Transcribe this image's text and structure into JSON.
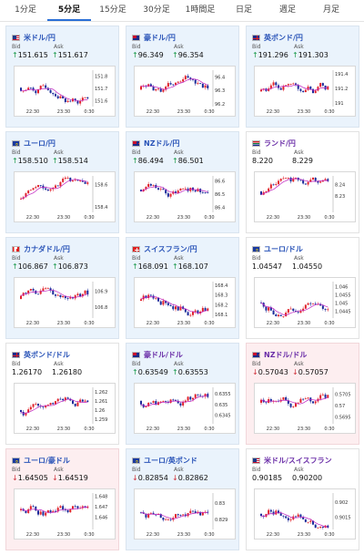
{
  "tabs": [
    {
      "label": "1分足",
      "active": false
    },
    {
      "label": "5分足",
      "active": true
    },
    {
      "label": "15分足",
      "active": false
    },
    {
      "label": "30分足",
      "active": false
    },
    {
      "label": "1時間足",
      "active": false
    },
    {
      "label": "日足",
      "active": false
    },
    {
      "label": "週足",
      "active": false
    },
    {
      "label": "月足",
      "active": false
    }
  ],
  "labels": {
    "bid": "Bid",
    "ask": "Ask"
  },
  "colors": {
    "up_candle": "#e0222b",
    "down_candle": "#1a2a9a",
    "ma_line": "#c020c0",
    "up_arrow": "#1a9a4a",
    "down_arrow": "#d0313b"
  },
  "pairs": [
    {
      "name": "米ドル/円",
      "flag": "flag-us",
      "bg": "blue",
      "dir": "up",
      "bid": "151.615",
      "ask": "151.617",
      "chart_data": {
        "type": "candlestick",
        "x_ticks": [
          "22:30",
          "23:30",
          "0:30"
        ],
        "y_ticks": [
          "151.8",
          "151.7",
          "151.6"
        ],
        "ylim": [
          151.55,
          151.85
        ]
      }
    },
    {
      "name": "豪ドル/円",
      "flag": "flag-au",
      "bg": "blue",
      "dir": "up",
      "bid": "96.349",
      "ask": "96.354",
      "chart_data": {
        "type": "candlestick",
        "x_ticks": [
          "22:30",
          "23:30",
          "0:30"
        ],
        "y_ticks": [
          "96.4",
          "96.3",
          "96.2"
        ],
        "ylim": [
          96.18,
          96.45
        ]
      }
    },
    {
      "name": "英ポンド/円",
      "flag": "flag-gb",
      "bg": "blue",
      "dir": "up",
      "bid": "191.296",
      "ask": "191.303",
      "chart_data": {
        "type": "candlestick",
        "x_ticks": [
          "22:30",
          "23:30",
          "0:30"
        ],
        "y_ticks": [
          "191.4",
          "191.2",
          "191"
        ],
        "ylim": [
          190.95,
          191.45
        ]
      }
    },
    {
      "name": "ユーロ/円",
      "flag": "flag-eu",
      "bg": "blue",
      "dir": "up",
      "bid": "158.510",
      "ask": "158.514",
      "chart_data": {
        "type": "candlestick",
        "x_ticks": [
          "22:30",
          "23:30",
          "0:30"
        ],
        "y_ticks": [
          "158.6",
          "158.4"
        ],
        "ylim": [
          158.35,
          158.68
        ]
      }
    },
    {
      "name": "NZドル/円",
      "flag": "flag-nz",
      "bg": "blue",
      "dir": "up",
      "bid": "86.494",
      "ask": "86.501",
      "chart_data": {
        "type": "candlestick",
        "x_ticks": [
          "22:30",
          "23:30",
          "0:30"
        ],
        "y_ticks": [
          "86.6",
          "86.5",
          "86.4"
        ],
        "ylim": [
          86.36,
          86.64
        ]
      }
    },
    {
      "name": "ランド/円",
      "flag": "flag-za",
      "bg": "white",
      "dir": "none",
      "bid": "8.220",
      "ask": "8.229",
      "chart_data": {
        "type": "candlestick",
        "x_ticks": [
          "22:30",
          "23:30",
          "0:30"
        ],
        "y_ticks": [
          "8.24",
          "8.23"
        ],
        "ylim": [
          8.215,
          8.248
        ]
      }
    },
    {
      "name": "カナダドル/円",
      "flag": "flag-ca",
      "bg": "blue",
      "dir": "up",
      "bid": "106.867",
      "ask": "106.873",
      "chart_data": {
        "type": "candlestick",
        "x_ticks": [
          "22:30",
          "23:30",
          "0:30"
        ],
        "y_ticks": [
          "106.9",
          "106.8"
        ],
        "ylim": [
          106.73,
          106.96
        ]
      }
    },
    {
      "name": "スイスフラン/円",
      "flag": "flag-ch",
      "bg": "blue",
      "dir": "up",
      "bid": "168.091",
      "ask": "168.107",
      "chart_data": {
        "type": "candlestick",
        "x_ticks": [
          "22:30",
          "23:30",
          "0:30"
        ],
        "y_ticks": [
          "168.4",
          "168.3",
          "168.2",
          "168.1"
        ],
        "ylim": [
          168.06,
          168.44
        ]
      }
    },
    {
      "name": "ユーロ/ドル",
      "flag": "flag-eu",
      "bg": "white",
      "dir": "none",
      "bid": "1.04547",
      "ask": "1.04550",
      "chart_data": {
        "type": "candlestick",
        "x_ticks": [
          "22:30",
          "23:30",
          "0:30"
        ],
        "y_ticks": [
          "1.046",
          "1.0455",
          "1.045",
          "1.0445"
        ],
        "ylim": [
          1.0441,
          1.0463
        ]
      }
    },
    {
      "name": "英ポンド/ドル",
      "flag": "flag-gb",
      "bg": "white",
      "dir": "none",
      "bid": "1.26170",
      "ask": "1.26180",
      "chart_data": {
        "type": "candlestick",
        "x_ticks": [
          "22:30",
          "23:30",
          "0:30"
        ],
        "y_ticks": [
          "1.262",
          "1.261",
          "1.26",
          "1.259"
        ],
        "ylim": [
          1.2585,
          1.2625
        ]
      }
    },
    {
      "name": "豪ドル/ドル",
      "flag": "flag-au",
      "bg": "blue",
      "dir": "up",
      "bid": "0.63549",
      "ask": "0.63553",
      "chart_data": {
        "type": "candlestick",
        "x_ticks": [
          "22:30",
          "23:30",
          "0:30"
        ],
        "y_ticks": [
          "0.6355",
          "0.635",
          "0.6345"
        ],
        "ylim": [
          0.6341,
          0.6358
        ]
      }
    },
    {
      "name": "NZドル/ドル",
      "flag": "flag-nz",
      "bg": "pink",
      "dir": "down",
      "bid": "0.57043",
      "ask": "0.57057",
      "chart_data": {
        "type": "candlestick",
        "x_ticks": [
          "22:30",
          "23:30",
          "0:30"
        ],
        "y_ticks": [
          "0.5705",
          "0.57",
          "0.5695"
        ],
        "ylim": [
          0.5692,
          0.5708
        ]
      }
    },
    {
      "name": "ユーロ/豪ドル",
      "flag": "flag-eu",
      "bg": "pink",
      "dir": "down",
      "bid": "1.64505",
      "ask": "1.64519",
      "chart_data": {
        "type": "candlestick",
        "x_ticks": [
          "22:30",
          "23:30",
          "0:30"
        ],
        "y_ticks": [
          "1.648",
          "1.647",
          "1.646"
        ],
        "ylim": [
          1.6448,
          1.6483
        ]
      }
    },
    {
      "name": "ユーロ/英ポンド",
      "flag": "flag-eu",
      "bg": "blue",
      "dir": "down",
      "bid": "0.82854",
      "ask": "0.82862",
      "chart_data": {
        "type": "candlestick",
        "x_ticks": [
          "22:30",
          "23:30",
          "0:30"
        ],
        "y_ticks": [
          "0.83",
          "0.829"
        ],
        "ylim": [
          0.8284,
          0.8306
        ]
      }
    },
    {
      "name": "米ドル/スイスフラン",
      "flag": "flag-us",
      "bg": "white",
      "dir": "none",
      "bid": "0.90185",
      "ask": "0.90200",
      "chart_data": {
        "type": "candlestick",
        "x_ticks": [
          "22:30",
          "23:30",
          "0:30"
        ],
        "y_ticks": [
          "0.902",
          "0.9015"
        ],
        "ylim": [
          0.9011,
          0.9023
        ]
      }
    }
  ]
}
